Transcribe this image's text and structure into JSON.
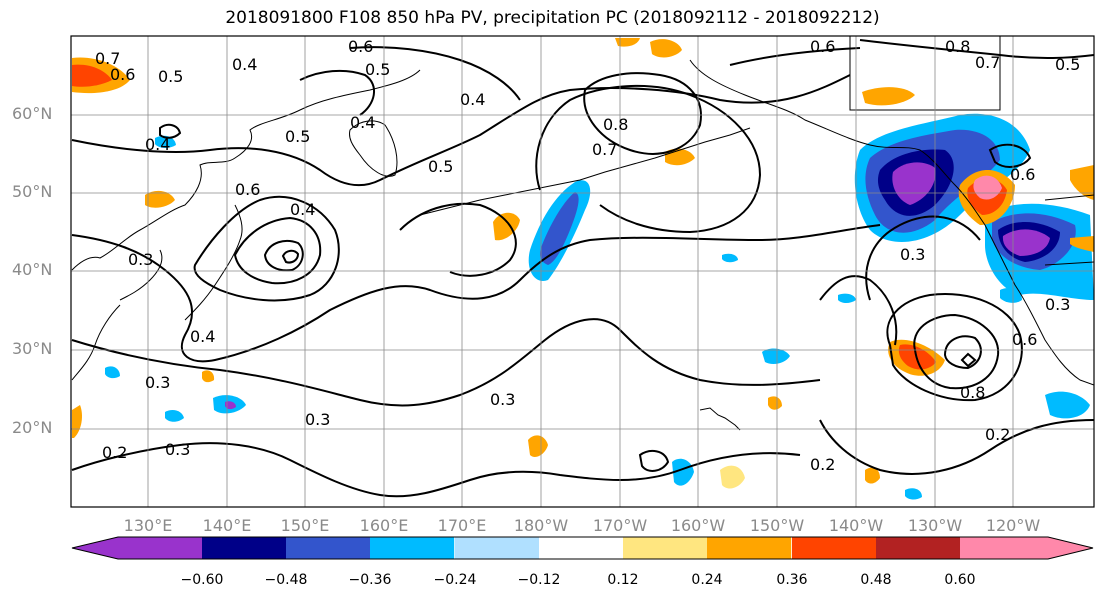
{
  "title": "2018091800 F108 850 hPa PV, precipitation PC (2018092112 - 2018092212)",
  "lat_labels": [
    "60°N",
    "50°N",
    "40°N",
    "30°N",
    "20°N"
  ],
  "lon_labels": [
    "130°E",
    "140°E",
    "150°E",
    "160°E",
    "170°E",
    "180°W",
    "170°W",
    "160°W",
    "150°W",
    "140°W",
    "130°W",
    "120°W"
  ],
  "contour_labels": [
    "0.6",
    "0.6",
    "0.8",
    "0.7",
    "0.5",
    "0.7",
    "0.6",
    "0.5",
    "0.4",
    "0.5",
    "0.4",
    "0.5",
    "0.4",
    "0.5",
    "0.8",
    "0.7",
    "0.4",
    "0.6",
    "0.4",
    "0.4",
    "0.3",
    "0.3",
    "0.3",
    "0.3",
    "0.3",
    "0.3",
    "0.2",
    "0.2",
    "0.2",
    "0.8",
    "0.6",
    "0.3",
    "0.6"
  ],
  "colorbar": {
    "ticks": [
      "−0.60",
      "−0.48",
      "−0.36",
      "−0.24",
      "−0.12",
      "0.12",
      "0.24",
      "0.36",
      "0.48",
      "0.60"
    ],
    "colors": [
      "#9933cc",
      "#000088",
      "#3355cc",
      "#00bbff",
      "#b0e0ff",
      "#ffffff",
      "#ffe680",
      "#ffa500",
      "#ff4400",
      "#b22222",
      "#ff88aa"
    ]
  }
}
